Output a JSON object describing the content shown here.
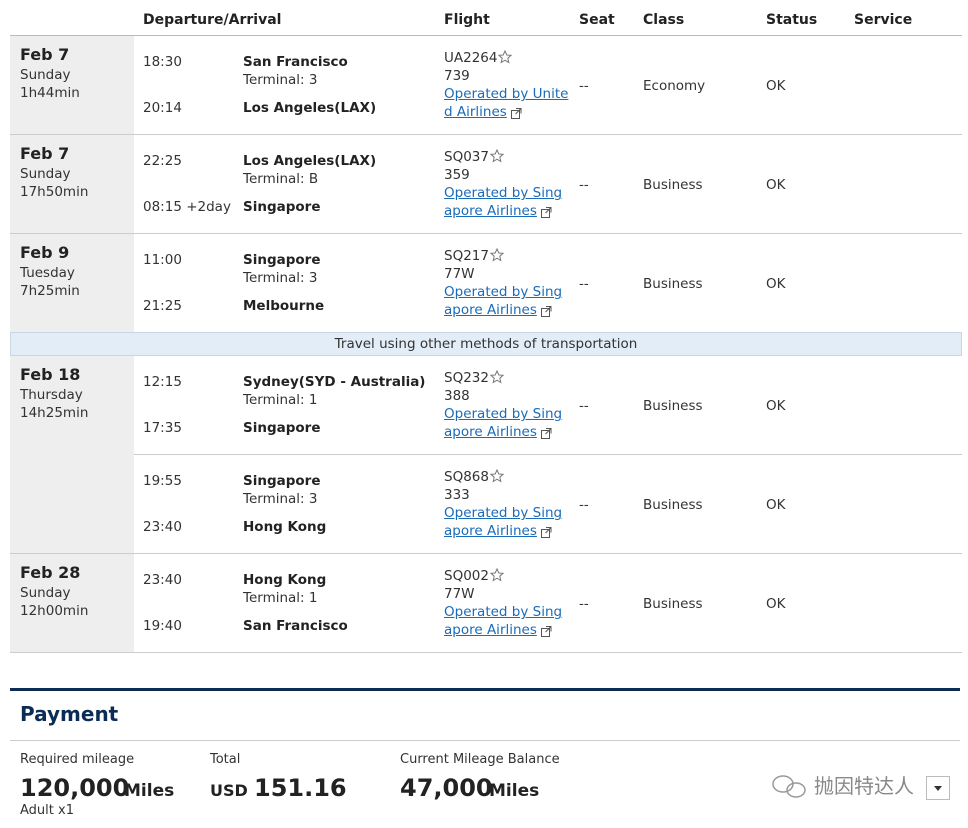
{
  "header": {
    "columns": [
      "Departure/Arrival",
      "Flight",
      "Seat",
      "Class",
      "Status",
      "Service"
    ]
  },
  "itinerary": [
    {
      "date": "Feb 7",
      "day": "Sunday",
      "duration": "1h44min",
      "flights": [
        {
          "dep_time": "18:30",
          "dep_airport": "San Francisco",
          "terminal": "Terminal: 3",
          "arr_time": "20:14",
          "arr_airport": "Los Angeles(LAX)",
          "flight": "UA2264",
          "aircraft": "739",
          "operator": "Operated by United Airlines",
          "seat": "--",
          "class": "Economy",
          "status": "OK"
        }
      ]
    },
    {
      "date": "Feb 7",
      "day": "Sunday",
      "duration": "17h50min",
      "flights": [
        {
          "dep_time": "22:25",
          "dep_airport": "Los Angeles(LAX)",
          "terminal": "Terminal: B",
          "arr_time": "08:15 +2day",
          "arr_airport": "Singapore",
          "flight": "SQ037",
          "aircraft": "359",
          "operator": "Operated by Singapore Airlines",
          "seat": "--",
          "class": "Business",
          "status": "OK"
        }
      ]
    },
    {
      "date": "Feb 9",
      "day": "Tuesday",
      "duration": "7h25min",
      "flights": [
        {
          "dep_time": "11:00",
          "dep_airport": "Singapore",
          "terminal": "Terminal: 3",
          "arr_time": "21:25",
          "arr_airport": "Melbourne",
          "flight": "SQ217",
          "aircraft": "77W",
          "operator": "Operated by Singapore Airlines",
          "seat": "--",
          "class": "Business",
          "status": "OK"
        }
      ]
    },
    {
      "notice": "Travel using other methods of transportation"
    },
    {
      "date": "Feb 18",
      "day": "Thursday",
      "duration": "14h25min",
      "flights": [
        {
          "dep_time": "12:15",
          "dep_airport": "Sydney(SYD - Australia)",
          "terminal": "Terminal: 1",
          "arr_time": "17:35",
          "arr_airport": "Singapore",
          "flight": "SQ232",
          "aircraft": "388",
          "operator": "Operated by Singapore Airlines",
          "seat": "--",
          "class": "Business",
          "status": "OK"
        },
        {
          "dep_time": "19:55",
          "dep_airport": "Singapore",
          "terminal": "Terminal: 3",
          "arr_time": "23:40",
          "arr_airport": "Hong Kong",
          "flight": "SQ868",
          "aircraft": "333",
          "operator": "Operated by Singapore Airlines",
          "seat": "--",
          "class": "Business",
          "status": "OK"
        }
      ]
    },
    {
      "date": "Feb 28",
      "day": "Sunday",
      "duration": "12h00min",
      "flights": [
        {
          "dep_time": "23:40",
          "dep_airport": "Hong Kong",
          "terminal": "Terminal: 1",
          "arr_time": "19:40",
          "arr_airport": "San Francisco",
          "flight": "SQ002",
          "aircraft": "77W",
          "operator": "Operated by Singapore Airlines",
          "seat": "--",
          "class": "Business",
          "status": "OK"
        }
      ]
    }
  ],
  "payment": {
    "title": "Payment",
    "mileage": {
      "label": "Required mileage",
      "value": "120,000",
      "unit": "Miles",
      "note": "Adult x1"
    },
    "total": {
      "label": "Total",
      "currency": "USD",
      "value": "151.16"
    },
    "balance": {
      "label": "Current Mileage Balance",
      "value": "47,000",
      "unit": "Miles"
    }
  },
  "watermark": "抛因特达人"
}
